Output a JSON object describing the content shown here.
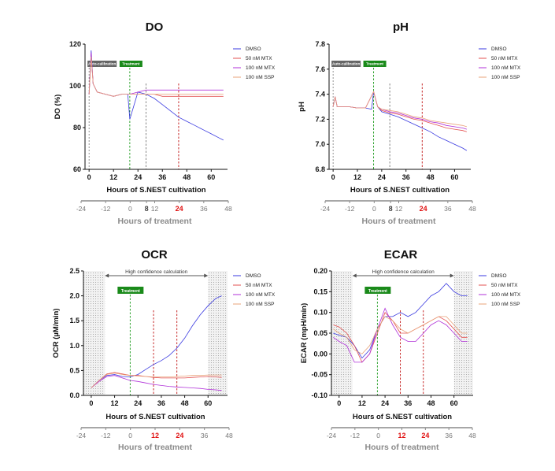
{
  "chart_data": [
    {
      "id": "do",
      "type": "line",
      "title": "DO",
      "ylabel": "DO (%)",
      "xlabel": "Hours of S.NEST cultivation",
      "ylim": [
        60,
        120
      ],
      "yticks": [
        "60",
        "80",
        "100",
        "120"
      ],
      "xlim": [
        -2,
        68
      ],
      "xticks": [
        "0",
        "12",
        "24",
        "36",
        "48",
        "60"
      ],
      "legend": [
        "DMSO",
        "50 nM MTX",
        "100 nM MTX",
        "100 nM SSP"
      ],
      "colors": {
        "DMSO": "#3a3ae0",
        "50 nM MTX": "#e35050",
        "100 nM MTX": "#b030d8",
        "100 nM SSP": "#e9a37a"
      },
      "annotations": [
        "Auto-calibration",
        "Treatment"
      ],
      "treatment_axis": {
        "label": "Hours of treatment",
        "ticks": [
          "-24",
          "-12",
          "0",
          "8",
          "12",
          "24",
          "36",
          "48"
        ],
        "highlight": [
          "8",
          "24"
        ]
      },
      "series": [
        {
          "name": "DMSO",
          "x": [
            0,
            1,
            2,
            4,
            8,
            12,
            16,
            19,
            20,
            24,
            28,
            32,
            36,
            40,
            44,
            48,
            52,
            56,
            60,
            64,
            66
          ],
          "y": [
            96,
            117,
            101,
            97,
            96,
            95,
            96,
            96,
            84,
            97,
            96,
            94,
            91,
            88,
            85,
            83,
            81,
            79,
            77,
            75,
            74
          ]
        },
        {
          "name": "50 nM MTX",
          "x": [
            0,
            1,
            2,
            4,
            8,
            12,
            16,
            20,
            24,
            28,
            32,
            36,
            40,
            44,
            48,
            52,
            56,
            60,
            64,
            66
          ],
          "y": [
            96,
            115,
            101,
            97,
            96,
            95,
            96,
            96,
            96,
            96,
            96,
            95,
            95,
            95,
            95,
            95,
            95,
            95,
            95,
            95
          ]
        },
        {
          "name": "100 nM MTX",
          "x": [
            0,
            1,
            2,
            4,
            8,
            12,
            16,
            20,
            24,
            28,
            32,
            36,
            40,
            44,
            48,
            52,
            56,
            60,
            64,
            66
          ],
          "y": [
            96,
            116,
            101,
            97,
            96,
            95,
            96,
            96,
            97,
            98,
            98,
            98,
            98,
            98,
            98,
            98,
            98,
            98,
            98,
            98
          ]
        },
        {
          "name": "100 nM SSP",
          "x": [
            0,
            1,
            2,
            4,
            8,
            12,
            16,
            20,
            24,
            28,
            32,
            36,
            40,
            44,
            48,
            52,
            56,
            60,
            64,
            66
          ],
          "y": [
            96,
            114,
            101,
            97,
            96,
            95,
            96,
            96,
            96,
            96,
            96,
            96,
            96,
            96,
            96,
            96,
            96,
            96,
            96,
            96
          ]
        }
      ]
    },
    {
      "id": "ph",
      "type": "line",
      "title": "pH",
      "ylabel": "pH",
      "xlabel": "Hours of S.NEST cultivation",
      "ylim": [
        6.8,
        7.8
      ],
      "yticks": [
        "6.8",
        "7.0",
        "7.2",
        "7.4",
        "7.6",
        "7.8"
      ],
      "xlim": [
        -2,
        68
      ],
      "xticks": [
        "0",
        "12",
        "24",
        "36",
        "48",
        "60"
      ],
      "legend": [
        "DMSO",
        "50 nM MTX",
        "100 nM MTX",
        "100 nM SSP"
      ],
      "colors": {
        "DMSO": "#3a3ae0",
        "50 nM MTX": "#e35050",
        "100 nM MTX": "#b030d8",
        "100 nM SSP": "#e9a37a"
      },
      "annotations": [
        "Auto-calibration",
        "Treatment"
      ],
      "treatment_axis": {
        "label": "Hours of treatment",
        "ticks": [
          "-24",
          "-12",
          "0",
          "8",
          "12",
          "24",
          "36",
          "48"
        ],
        "highlight": [
          "8",
          "24"
        ]
      },
      "series": [
        {
          "name": "DMSO",
          "x": [
            0,
            1,
            2,
            4,
            8,
            12,
            16,
            19,
            20,
            22,
            24,
            28,
            32,
            36,
            40,
            44,
            48,
            52,
            56,
            60,
            64,
            66
          ],
          "y": [
            7.3,
            7.38,
            7.3,
            7.3,
            7.3,
            7.29,
            7.29,
            7.28,
            7.42,
            7.3,
            7.26,
            7.24,
            7.22,
            7.19,
            7.16,
            7.13,
            7.1,
            7.06,
            7.03,
            7.0,
            6.97,
            6.95
          ]
        },
        {
          "name": "50 nM MTX",
          "x": [
            0,
            1,
            2,
            4,
            8,
            12,
            16,
            20,
            22,
            24,
            28,
            32,
            36,
            40,
            44,
            48,
            52,
            56,
            60,
            64,
            66
          ],
          "y": [
            7.3,
            7.38,
            7.3,
            7.3,
            7.3,
            7.29,
            7.29,
            7.42,
            7.3,
            7.27,
            7.25,
            7.24,
            7.22,
            7.2,
            7.19,
            7.17,
            7.15,
            7.13,
            7.12,
            7.11,
            7.1
          ]
        },
        {
          "name": "100 nM MTX",
          "x": [
            0,
            1,
            2,
            4,
            8,
            12,
            16,
            20,
            22,
            24,
            28,
            32,
            36,
            40,
            44,
            48,
            52,
            56,
            60,
            64,
            66
          ],
          "y": [
            7.3,
            7.38,
            7.3,
            7.3,
            7.3,
            7.29,
            7.29,
            7.42,
            7.3,
            7.28,
            7.26,
            7.25,
            7.23,
            7.21,
            7.2,
            7.18,
            7.17,
            7.15,
            7.14,
            7.13,
            7.12
          ]
        },
        {
          "name": "100 nM SSP",
          "x": [
            0,
            1,
            2,
            4,
            8,
            12,
            16,
            20,
            22,
            24,
            28,
            32,
            36,
            40,
            44,
            48,
            52,
            56,
            60,
            64,
            66
          ],
          "y": [
            7.3,
            7.38,
            7.3,
            7.3,
            7.3,
            7.29,
            7.29,
            7.42,
            7.3,
            7.28,
            7.27,
            7.26,
            7.24,
            7.22,
            7.21,
            7.19,
            7.18,
            7.17,
            7.16,
            7.15,
            7.14
          ]
        }
      ]
    },
    {
      "id": "ocr",
      "type": "line",
      "title": "OCR",
      "ylabel": "OCR  (µM/min)",
      "xlabel": "Hours of S.NEST cultivation",
      "ylim": [
        0,
        2.5
      ],
      "yticks": [
        "0.0",
        "0.5",
        "1.0",
        "1.5",
        "2.0",
        "2.5"
      ],
      "xlim": [
        -4,
        70
      ],
      "xticks": [
        "0",
        "12",
        "24",
        "36",
        "48",
        "60"
      ],
      "legend": [
        "DMSO",
        "50 nM MTX",
        "100 nM MTX",
        "100 nM SSP"
      ],
      "colors": {
        "DMSO": "#3a3ae0",
        "50 nM MTX": "#e35050",
        "100 nM MTX": "#b030d8",
        "100 nM SSP": "#e9a37a"
      },
      "annotations": [
        "High confidence calculation",
        "Treatment"
      ],
      "treatment_axis": {
        "label": "Hours of treatment",
        "ticks": [
          "-24",
          "-12",
          "0",
          "12",
          "24",
          "36",
          "48"
        ],
        "highlight": [
          "12",
          "24"
        ]
      },
      "series": [
        {
          "name": "DMSO",
          "x": [
            0,
            4,
            8,
            12,
            16,
            20,
            24,
            28,
            32,
            36,
            40,
            44,
            48,
            52,
            56,
            60,
            64,
            67
          ],
          "y": [
            0.15,
            0.3,
            0.4,
            0.42,
            0.38,
            0.37,
            0.42,
            0.52,
            0.62,
            0.7,
            0.8,
            0.95,
            1.15,
            1.4,
            1.62,
            1.8,
            1.95,
            2.0
          ]
        },
        {
          "name": "50 nM MTX",
          "x": [
            0,
            4,
            8,
            12,
            16,
            20,
            24,
            28,
            32,
            36,
            40,
            44,
            48,
            52,
            56,
            60,
            64,
            67
          ],
          "y": [
            0.15,
            0.3,
            0.43,
            0.46,
            0.43,
            0.4,
            0.4,
            0.38,
            0.36,
            0.35,
            0.35,
            0.35,
            0.35,
            0.36,
            0.37,
            0.38,
            0.37,
            0.36
          ]
        },
        {
          "name": "100 nM MTX",
          "x": [
            0,
            4,
            8,
            12,
            16,
            20,
            24,
            28,
            32,
            36,
            40,
            44,
            48,
            52,
            56,
            60,
            64,
            67
          ],
          "y": [
            0.15,
            0.28,
            0.38,
            0.4,
            0.35,
            0.3,
            0.28,
            0.25,
            0.22,
            0.2,
            0.18,
            0.17,
            0.16,
            0.15,
            0.14,
            0.12,
            0.11,
            0.1
          ]
        },
        {
          "name": "100 nM SSP",
          "x": [
            0,
            4,
            8,
            12,
            16,
            20,
            24,
            28,
            32,
            36,
            40,
            44,
            48,
            52,
            56,
            60,
            64,
            67
          ],
          "y": [
            0.15,
            0.3,
            0.42,
            0.45,
            0.42,
            0.4,
            0.39,
            0.38,
            0.37,
            0.37,
            0.37,
            0.38,
            0.39,
            0.4,
            0.4,
            0.41,
            0.41,
            0.41
          ]
        }
      ]
    },
    {
      "id": "ecar",
      "type": "line",
      "title": "ECAR",
      "ylabel": "ECAR (mpH/min)",
      "xlabel": "Hours of S.NEST cultivation",
      "ylim": [
        -0.1,
        0.2
      ],
      "yticks": [
        "-0.10",
        "-0.05",
        "0.00",
        "0.05",
        "0.10",
        "0.15",
        "0.20"
      ],
      "xlim": [
        -4,
        70
      ],
      "xticks": [
        "0",
        "12",
        "24",
        "36",
        "48",
        "60"
      ],
      "legend": [
        "DMSO",
        "50 nM MTX",
        "100 nM MTX",
        "100 nM SSP"
      ],
      "colors": {
        "DMSO": "#3a3ae0",
        "50 nM MTX": "#e35050",
        "100 nM MTX": "#b030d8",
        "100 nM SSP": "#e9a37a"
      },
      "annotations": [
        "High confidence calculation",
        "Treatment"
      ],
      "treatment_axis": {
        "label": "Hours of treatment",
        "ticks": [
          "-24",
          "-12",
          "0",
          "12",
          "24",
          "36",
          "48"
        ],
        "highlight": [
          "12",
          "24"
        ]
      },
      "series": [
        {
          "name": "DMSO",
          "x": [
            -3,
            0,
            4,
            8,
            12,
            16,
            20,
            24,
            28,
            32,
            36,
            40,
            44,
            48,
            52,
            56,
            60,
            64,
            67
          ],
          "y": [
            0.05,
            0.045,
            0.04,
            0.02,
            -0.01,
            0.01,
            0.06,
            0.09,
            0.09,
            0.1,
            0.09,
            0.1,
            0.12,
            0.14,
            0.15,
            0.17,
            0.15,
            0.14,
            0.14
          ]
        },
        {
          "name": "50 nM MTX",
          "x": [
            -3,
            0,
            4,
            8,
            12,
            16,
            20,
            24,
            28,
            32,
            36,
            40,
            44,
            48,
            52,
            56,
            60,
            64,
            67
          ],
          "y": [
            0.07,
            0.065,
            0.05,
            0.02,
            -0.02,
            0.0,
            0.05,
            0.1,
            0.08,
            0.05,
            0.05,
            0.06,
            0.07,
            0.08,
            0.09,
            0.08,
            0.06,
            0.04,
            0.04
          ]
        },
        {
          "name": "100 nM MTX",
          "x": [
            -3,
            0,
            4,
            8,
            12,
            16,
            20,
            24,
            28,
            32,
            36,
            40,
            44,
            48,
            52,
            56,
            60,
            64,
            67
          ],
          "y": [
            0.04,
            0.03,
            0.02,
            -0.02,
            -0.02,
            0.0,
            0.06,
            0.11,
            0.07,
            0.04,
            0.03,
            0.03,
            0.05,
            0.07,
            0.08,
            0.07,
            0.05,
            0.03,
            0.03
          ]
        },
        {
          "name": "100 nM SSP",
          "x": [
            -3,
            0,
            4,
            8,
            12,
            16,
            20,
            24,
            28,
            32,
            36,
            40,
            44,
            48,
            52,
            56,
            60,
            64,
            67
          ],
          "y": [
            0.06,
            0.05,
            0.04,
            0.01,
            0.0,
            0.02,
            0.06,
            0.09,
            0.08,
            0.06,
            0.05,
            0.06,
            0.07,
            0.08,
            0.09,
            0.09,
            0.07,
            0.05,
            0.05
          ]
        }
      ]
    }
  ]
}
